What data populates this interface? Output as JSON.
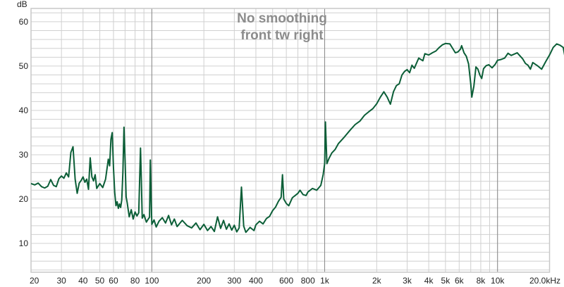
{
  "chart_data": {
    "type": "line",
    "title": "No smoothing",
    "subtitle": "front tw right",
    "ylabel": "dB",
    "xlabel": "",
    "x_scale": "log",
    "xlim": [
      20,
      20000
    ],
    "ylim": [
      3.5,
      63
    ],
    "grid": true,
    "line_color": "#0b5e37",
    "x_major_ticks": [
      100,
      1000,
      10000
    ],
    "y_ticks": [
      {
        "value": 10,
        "label": "10"
      },
      {
        "value": 20,
        "label": "20"
      },
      {
        "value": 30,
        "label": "30"
      },
      {
        "value": 40,
        "label": "40"
      },
      {
        "value": 50,
        "label": "50"
      },
      {
        "value": 60,
        "label": "60"
      }
    ],
    "x_ticks": [
      {
        "value": 20,
        "label": "20"
      },
      {
        "value": 30,
        "label": "30"
      },
      {
        "value": 40,
        "label": "40"
      },
      {
        "value": 50,
        "label": "50"
      },
      {
        "value": 60,
        "label": "60"
      },
      {
        "value": 80,
        "label": "80"
      },
      {
        "value": 100,
        "label": "100"
      },
      {
        "value": 200,
        "label": "200"
      },
      {
        "value": 300,
        "label": "300"
      },
      {
        "value": 400,
        "label": "400"
      },
      {
        "value": 600,
        "label": "600"
      },
      {
        "value": 800,
        "label": "800"
      },
      {
        "value": 1000,
        "label": "1k"
      },
      {
        "value": 2000,
        "label": "2k"
      },
      {
        "value": 3000,
        "label": "3k"
      },
      {
        "value": 4000,
        "label": "4k"
      },
      {
        "value": 5000,
        "label": "5k"
      },
      {
        "value": 6000,
        "label": "6k"
      },
      {
        "value": 8000,
        "label": "8k"
      },
      {
        "value": 10000,
        "label": "10k"
      },
      {
        "value": 20000,
        "label": "20.0kHz"
      }
    ],
    "series": [
      {
        "points": [
          [
            20,
            23.5
          ],
          [
            21,
            23.2
          ],
          [
            22,
            23.6
          ],
          [
            23,
            22.8
          ],
          [
            24,
            22.5
          ],
          [
            25,
            22.9
          ],
          [
            26,
            24.4
          ],
          [
            27,
            23.1
          ],
          [
            28,
            22.8
          ],
          [
            29,
            24.6
          ],
          [
            30,
            25.2
          ],
          [
            31,
            24.7
          ],
          [
            32,
            25.9
          ],
          [
            33,
            25.0
          ],
          [
            34,
            30.5
          ],
          [
            35,
            31.8
          ],
          [
            36,
            24.5
          ],
          [
            37,
            21.3
          ],
          [
            38,
            23.6
          ],
          [
            39,
            24.2
          ],
          [
            40,
            25.0
          ],
          [
            41,
            23.8
          ],
          [
            42,
            24.5
          ],
          [
            43,
            22.2
          ],
          [
            44,
            29.3
          ],
          [
            45,
            25.0
          ],
          [
            46,
            24.1
          ],
          [
            47,
            25.5
          ],
          [
            48,
            22.4
          ],
          [
            50,
            23.5
          ],
          [
            52,
            22.6
          ],
          [
            54,
            24.5
          ],
          [
            56,
            29.0
          ],
          [
            57,
            27.5
          ],
          [
            58,
            33.5
          ],
          [
            59,
            35.0
          ],
          [
            60,
            27.0
          ],
          [
            61,
            21.5
          ],
          [
            62,
            18.5
          ],
          [
            63,
            19.4
          ],
          [
            64,
            17.9
          ],
          [
            65,
            18.9
          ],
          [
            66,
            18.1
          ],
          [
            67,
            19.8
          ],
          [
            68,
            26.0
          ],
          [
            69,
            36.2
          ],
          [
            70,
            29.0
          ],
          [
            71,
            20.5
          ],
          [
            72,
            19.2
          ],
          [
            74,
            16.0
          ],
          [
            76,
            17.6
          ],
          [
            78,
            15.5
          ],
          [
            80,
            17.1
          ],
          [
            82,
            16.2
          ],
          [
            84,
            16.9
          ],
          [
            86,
            31.5
          ],
          [
            87,
            24.0
          ],
          [
            88,
            15.7
          ],
          [
            90,
            16.5
          ],
          [
            93,
            14.8
          ],
          [
            95,
            15.4
          ],
          [
            97,
            15.9
          ],
          [
            98,
            28.8
          ],
          [
            99,
            21.0
          ],
          [
            100,
            14.3
          ],
          [
            103,
            15.3
          ],
          [
            106,
            13.7
          ],
          [
            110,
            15.0
          ],
          [
            115,
            15.8
          ],
          [
            120,
            14.6
          ],
          [
            125,
            16.3
          ],
          [
            130,
            14.2
          ],
          [
            135,
            15.5
          ],
          [
            140,
            13.8
          ],
          [
            150,
            15.2
          ],
          [
            160,
            14.0
          ],
          [
            170,
            13.5
          ],
          [
            180,
            14.6
          ],
          [
            190,
            13.1
          ],
          [
            200,
            14.3
          ],
          [
            210,
            12.9
          ],
          [
            220,
            13.8
          ],
          [
            230,
            12.7
          ],
          [
            240,
            16.0
          ],
          [
            250,
            13.4
          ],
          [
            260,
            15.2
          ],
          [
            270,
            13.2
          ],
          [
            280,
            14.4
          ],
          [
            290,
            13.0
          ],
          [
            300,
            14.1
          ],
          [
            310,
            12.6
          ],
          [
            320,
            13.5
          ],
          [
            330,
            22.7
          ],
          [
            340,
            13.9
          ],
          [
            350,
            12.5
          ],
          [
            370,
            13.6
          ],
          [
            390,
            12.9
          ],
          [
            400,
            14.2
          ],
          [
            420,
            15.0
          ],
          [
            440,
            14.4
          ],
          [
            460,
            15.6
          ],
          [
            480,
            16.1
          ],
          [
            500,
            17.4
          ],
          [
            520,
            18.2
          ],
          [
            540,
            19.5
          ],
          [
            560,
            20.4
          ],
          [
            570,
            25.5
          ],
          [
            580,
            20.0
          ],
          [
            600,
            19.0
          ],
          [
            620,
            18.5
          ],
          [
            650,
            20.3
          ],
          [
            680,
            20.9
          ],
          [
            700,
            21.3
          ],
          [
            720,
            22.0
          ],
          [
            750,
            21.0
          ],
          [
            780,
            20.8
          ],
          [
            800,
            21.6
          ],
          [
            850,
            22.4
          ],
          [
            900,
            22.0
          ],
          [
            950,
            23.1
          ],
          [
            980,
            25.5
          ],
          [
            1000,
            28.0
          ],
          [
            1010,
            37.4
          ],
          [
            1030,
            28.0
          ],
          [
            1060,
            29.2
          ],
          [
            1100,
            30.4
          ],
          [
            1150,
            31.2
          ],
          [
            1200,
            32.5
          ],
          [
            1300,
            34.0
          ],
          [
            1400,
            35.5
          ],
          [
            1500,
            36.8
          ],
          [
            1600,
            37.6
          ],
          [
            1700,
            38.9
          ],
          [
            1800,
            39.7
          ],
          [
            1900,
            40.4
          ],
          [
            2000,
            41.5
          ],
          [
            2100,
            43.0
          ],
          [
            2200,
            44.2
          ],
          [
            2300,
            43.0
          ],
          [
            2400,
            41.4
          ],
          [
            2500,
            44.2
          ],
          [
            2600,
            45.6
          ],
          [
            2700,
            46.0
          ],
          [
            2800,
            48.0
          ],
          [
            2900,
            48.8
          ],
          [
            3000,
            49.2
          ],
          [
            3100,
            48.5
          ],
          [
            3200,
            50.2
          ],
          [
            3300,
            49.5
          ],
          [
            3500,
            51.8
          ],
          [
            3700,
            51.2
          ],
          [
            3800,
            52.8
          ],
          [
            4000,
            52.5
          ],
          [
            4200,
            53.0
          ],
          [
            4400,
            53.4
          ],
          [
            4600,
            54.2
          ],
          [
            4800,
            54.8
          ],
          [
            5000,
            55.1
          ],
          [
            5300,
            55.0
          ],
          [
            5500,
            54.0
          ],
          [
            5700,
            53.0
          ],
          [
            5900,
            53.2
          ],
          [
            6100,
            53.8
          ],
          [
            6200,
            54.6
          ],
          [
            6400,
            53.0
          ],
          [
            6600,
            52.2
          ],
          [
            6800,
            50.5
          ],
          [
            7000,
            46.0
          ],
          [
            7100,
            43.0
          ],
          [
            7300,
            45.5
          ],
          [
            7500,
            49.8
          ],
          [
            7700,
            49.3
          ],
          [
            7900,
            48.0
          ],
          [
            8100,
            47.2
          ],
          [
            8300,
            49.4
          ],
          [
            8600,
            50.1
          ],
          [
            8900,
            50.3
          ],
          [
            9300,
            49.6
          ],
          [
            9700,
            50.4
          ],
          [
            10000,
            51.3
          ],
          [
            10500,
            51.5
          ],
          [
            11000,
            51.8
          ],
          [
            11500,
            52.9
          ],
          [
            12000,
            52.4
          ],
          [
            13000,
            53.0
          ],
          [
            14000,
            51.6
          ],
          [
            14500,
            50.6
          ],
          [
            15000,
            50.2
          ],
          [
            15500,
            49.3
          ],
          [
            16000,
            50.8
          ],
          [
            17000,
            50.1
          ],
          [
            18000,
            49.3
          ],
          [
            19000,
            51.0
          ],
          [
            20000,
            52.5
          ],
          [
            21000,
            54.2
          ],
          [
            22000,
            55.0
          ],
          [
            23000,
            54.7
          ],
          [
            24000,
            54.2
          ],
          [
            24500,
            52.3
          ]
        ]
      }
    ]
  }
}
